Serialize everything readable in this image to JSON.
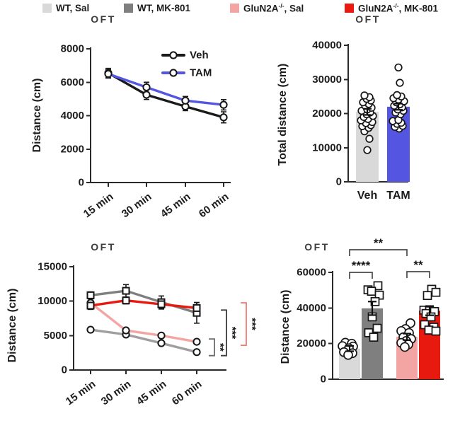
{
  "figure_background": "#ffffff",
  "accent_colors": {
    "blue": "#5456e2",
    "light_gray": "#d9d9d9",
    "dark_gray": "#7f7f7f",
    "pink": "#f3a5a3",
    "red": "#e8190f",
    "black": "#1a1a1a"
  },
  "chart_data": [
    {
      "type": "line",
      "title": "OFT",
      "ylabel": "Distance (cm)",
      "x_categories": [
        "15 min",
        "30 min",
        "45 min",
        "60 min"
      ],
      "ylim": [
        0,
        8000
      ],
      "yticks": [
        0,
        2000,
        4000,
        6000,
        8000
      ],
      "legend_position": "top-right-inside",
      "series": [
        {
          "name": "Veh",
          "color": "#1a1a1a",
          "marker": "circle",
          "values": [
            6550,
            5250,
            4550,
            3900
          ],
          "errors": [
            280,
            280,
            250,
            330
          ]
        },
        {
          "name": "TAM",
          "color": "#5456e2",
          "marker": "circle",
          "values": [
            6500,
            5700,
            4900,
            4650
          ],
          "errors": [
            250,
            300,
            250,
            310
          ]
        }
      ]
    },
    {
      "type": "bar",
      "title": "OFT",
      "ylabel": "Total distance (cm)",
      "ylim": [
        0,
        40000
      ],
      "yticks": [
        0,
        10000,
        20000,
        30000,
        40000
      ],
      "bars": [
        {
          "label": "Veh",
          "color": "#d9d9d9",
          "value": 20500,
          "error": 900,
          "marker": "circle",
          "points": [
            [
              0,
              9300
            ],
            [
              3,
              12600
            ],
            [
              -4,
              14800
            ],
            [
              2,
              15800
            ],
            [
              -7,
              16300
            ],
            [
              5,
              16600
            ],
            [
              -2,
              17200
            ],
            [
              7,
              17500
            ],
            [
              -9,
              18000
            ],
            [
              1,
              18400
            ],
            [
              -5,
              19000
            ],
            [
              8,
              19300
            ],
            [
              -1,
              19800
            ],
            [
              4,
              20300
            ],
            [
              -8,
              20800
            ],
            [
              0,
              21200
            ],
            [
              6,
              21700
            ],
            [
              -3,
              22300
            ],
            [
              2,
              22800
            ],
            [
              -6,
              23300
            ],
            [
              5,
              23800
            ],
            [
              -1,
              24300
            ],
            [
              3,
              24800
            ],
            [
              -4,
              25300
            ]
          ]
        },
        {
          "label": "TAM",
          "color": "#5456e2",
          "value": 22000,
          "error": 900,
          "marker": "circle",
          "points": [
            [
              1,
              15600
            ],
            [
              -5,
              16100
            ],
            [
              6,
              16400
            ],
            [
              -2,
              17000
            ],
            [
              4,
              17300
            ],
            [
              -8,
              17800
            ],
            [
              0,
              18100
            ],
            [
              3,
              19800
            ],
            [
              -4,
              20300
            ],
            [
              7,
              20800
            ],
            [
              -1,
              21200
            ],
            [
              5,
              21800
            ],
            [
              -6,
              22300
            ],
            [
              2,
              22700
            ],
            [
              -3,
              23300
            ],
            [
              8,
              23600
            ],
            [
              0,
              24100
            ],
            [
              -7,
              24500
            ],
            [
              4,
              25000
            ],
            [
              -2,
              25400
            ],
            [
              2,
              29000
            ],
            [
              0,
              33500
            ]
          ]
        }
      ]
    },
    {
      "type": "line",
      "title": "OFT",
      "ylabel": "Distance (cm)",
      "x_categories": [
        "15 min",
        "30 min",
        "45 min",
        "60 min"
      ],
      "ylim": [
        0,
        15000
      ],
      "yticks": [
        0,
        5000,
        10000,
        15000
      ],
      "series": [
        {
          "name": "WT, Sal",
          "color": "#9f9f9f",
          "marker": "circle",
          "values": [
            5850,
            5150,
            3900,
            2600
          ],
          "errors": [
            250,
            200,
            200,
            200
          ]
        },
        {
          "name": "GluN2A-/-, Sal",
          "color": "#f3a5a3",
          "marker": "circle",
          "values": [
            9750,
            5750,
            5000,
            4100
          ],
          "errors": [
            400,
            250,
            200,
            200
          ]
        },
        {
          "name": "WT, MK-801",
          "color": "#7f7f7f",
          "marker": "square",
          "values": [
            10850,
            11500,
            9850,
            8300
          ],
          "errors": [
            500,
            900,
            900,
            1500
          ]
        },
        {
          "name": "GluN2A-/-, MK-801",
          "color": "#e8190f",
          "marker": "square",
          "values": [
            9350,
            10100,
            9550,
            9000
          ],
          "errors": [
            550,
            500,
            700,
            800
          ]
        }
      ],
      "sig_brackets": [
        {
          "label": "**",
          "color": "#6b6b6b",
          "from_value": 4100,
          "to_value": 2600
        },
        {
          "label": "***",
          "color": "#3a3a3a",
          "from_value": 8300,
          "to_value": 2600
        },
        {
          "label": "***",
          "color": "#ee7a72",
          "from_value": 9350,
          "to_value": 4100
        }
      ]
    },
    {
      "type": "bar",
      "title": "OFT",
      "ylabel": "Distance (cm)",
      "ylim": [
        0,
        60000
      ],
      "yticks": [
        0,
        20000,
        40000,
        60000
      ],
      "bars": [
        {
          "label": "WT, Sal",
          "color": "#d9d9d9",
          "value": 17200,
          "error": 1500,
          "marker": "circle",
          "points": [
            [
              -6,
              20500
            ],
            [
              3,
              20000
            ],
            [
              -10,
              18600
            ],
            [
              5,
              18400
            ],
            [
              -1,
              17400
            ],
            [
              -8,
              15200
            ],
            [
              4,
              14600
            ],
            [
              -2,
              13600
            ]
          ]
        },
        {
          "label": "WT, MK-801",
          "color": "#7f7f7f",
          "value": 39800,
          "error": 3800,
          "marker": "square",
          "points": [
            [
              8,
              52500
            ],
            [
              -6,
              50200
            ],
            [
              -1,
              49400
            ],
            [
              10,
              47200
            ],
            [
              4,
              43600
            ],
            [
              0,
              35000
            ],
            [
              7,
              28600
            ],
            [
              -5,
              26100
            ],
            [
              2,
              23600
            ]
          ]
        },
        {
          "label": "GluN2A-/-, Sal",
          "color": "#f3a5a3",
          "value": 23800,
          "error": 1800,
          "marker": "circle",
          "points": [
            [
              5,
              31500
            ],
            [
              -2,
              28200
            ],
            [
              -8,
              27100
            ],
            [
              3,
              26000
            ],
            [
              -5,
              23600
            ],
            [
              6,
              22600
            ],
            [
              -1,
              21500
            ],
            [
              -8,
              20400
            ],
            [
              2,
              19500
            ],
            [
              -3,
              18100
            ]
          ]
        },
        {
          "label": "GluN2A-/-, MK-801",
          "color": "#e8190f",
          "value": 38500,
          "error": 2600,
          "marker": "square",
          "points": [
            [
              3,
              50500
            ],
            [
              9,
              48800
            ],
            [
              -3,
              47000
            ],
            [
              -8,
              38800
            ],
            [
              0,
              38400
            ],
            [
              7,
              38000
            ],
            [
              -5,
              36900
            ],
            [
              2,
              35000
            ],
            [
              -7,
              30600
            ],
            [
              6,
              29200
            ],
            [
              -1,
              27600
            ],
            [
              9,
              27000
            ]
          ]
        }
      ],
      "sig_brackets": [
        {
          "label": "****",
          "from": 0,
          "to": 1
        },
        {
          "label": "**",
          "from": 0,
          "to": 2
        },
        {
          "label": "**",
          "from": 2,
          "to": 3
        }
      ]
    }
  ],
  "legend": {
    "items": [
      {
        "pre": "WT, Sal",
        "sup": "",
        "post": "",
        "color": "#d9d9d9"
      },
      {
        "pre": "WT, MK-801",
        "sup": "",
        "post": "",
        "color": "#7f7f7f"
      },
      {
        "pre": "GluN2A",
        "sup": "-/-",
        "post": ", Sal",
        "color": "#f3a5a3"
      },
      {
        "pre": "GluN2A",
        "sup": "-/-",
        "post": ", MK-801",
        "color": "#e8190f"
      }
    ]
  }
}
